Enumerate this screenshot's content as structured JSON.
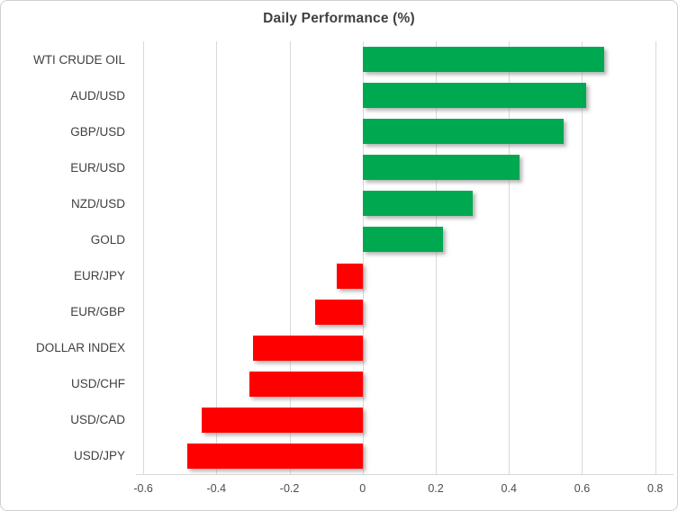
{
  "chart_data": {
    "type": "bar",
    "orientation": "horizontal",
    "title": "Daily Performance (%)",
    "categories": [
      "WTI CRUDE OIL",
      "AUD/USD",
      "GBP/USD",
      "EUR/USD",
      "NZD/USD",
      "GOLD",
      "EUR/JPY",
      "EUR/GBP",
      "DOLLAR INDEX",
      "USD/CHF",
      "USD/CAD",
      "USD/JPY"
    ],
    "values": [
      0.66,
      0.61,
      0.55,
      0.43,
      0.3,
      0.22,
      -0.07,
      -0.13,
      -0.3,
      -0.31,
      -0.44,
      -0.48
    ],
    "xlabel": "",
    "ylabel": "",
    "xlim": [
      -0.62,
      0.85
    ],
    "xticks": [
      -0.6,
      -0.4,
      -0.2,
      0,
      0.2,
      0.4,
      0.6,
      0.8
    ],
    "xtick_labels": [
      "-0.6",
      "-0.4",
      "-0.2",
      "0",
      "0.2",
      "0.4",
      "0.6",
      "0.8"
    ],
    "grid": true,
    "legend": false,
    "colors": {
      "positive": "#00a950",
      "negative": "#ff0000",
      "gridline": "#d9d9d9",
      "axis_line": "#d9d9d9",
      "tick_label": "#4d4d4d",
      "category_label": "#3f3f3f",
      "title": "#404040"
    }
  }
}
